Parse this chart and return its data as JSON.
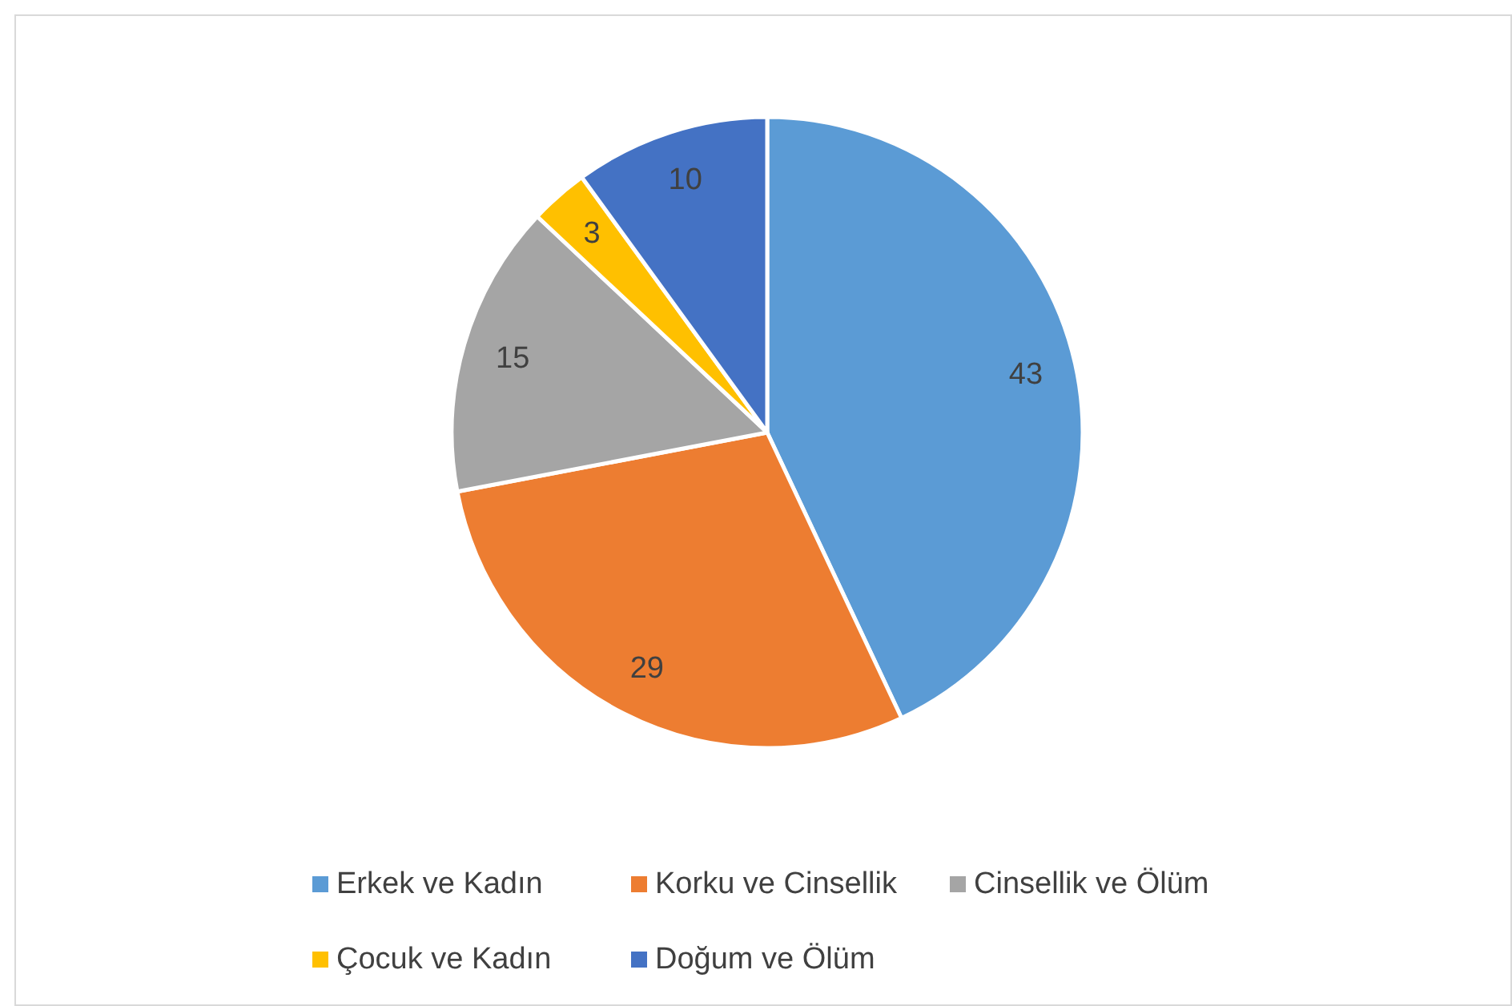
{
  "chart_data": {
    "type": "pie",
    "categories": [
      "Erkek ve Kadın",
      "Korku ve Cinsellik",
      "Cinsellik ve Ölüm",
      "Çocuk ve Kadın",
      "Doğum ve Ölüm"
    ],
    "values": [
      43,
      29,
      15,
      3,
      10
    ],
    "colors": [
      "#5b9bd5",
      "#ed7d31",
      "#a5a5a5",
      "#ffc000",
      "#4472c4"
    ],
    "data_labels": true,
    "legend": "bottom"
  }
}
